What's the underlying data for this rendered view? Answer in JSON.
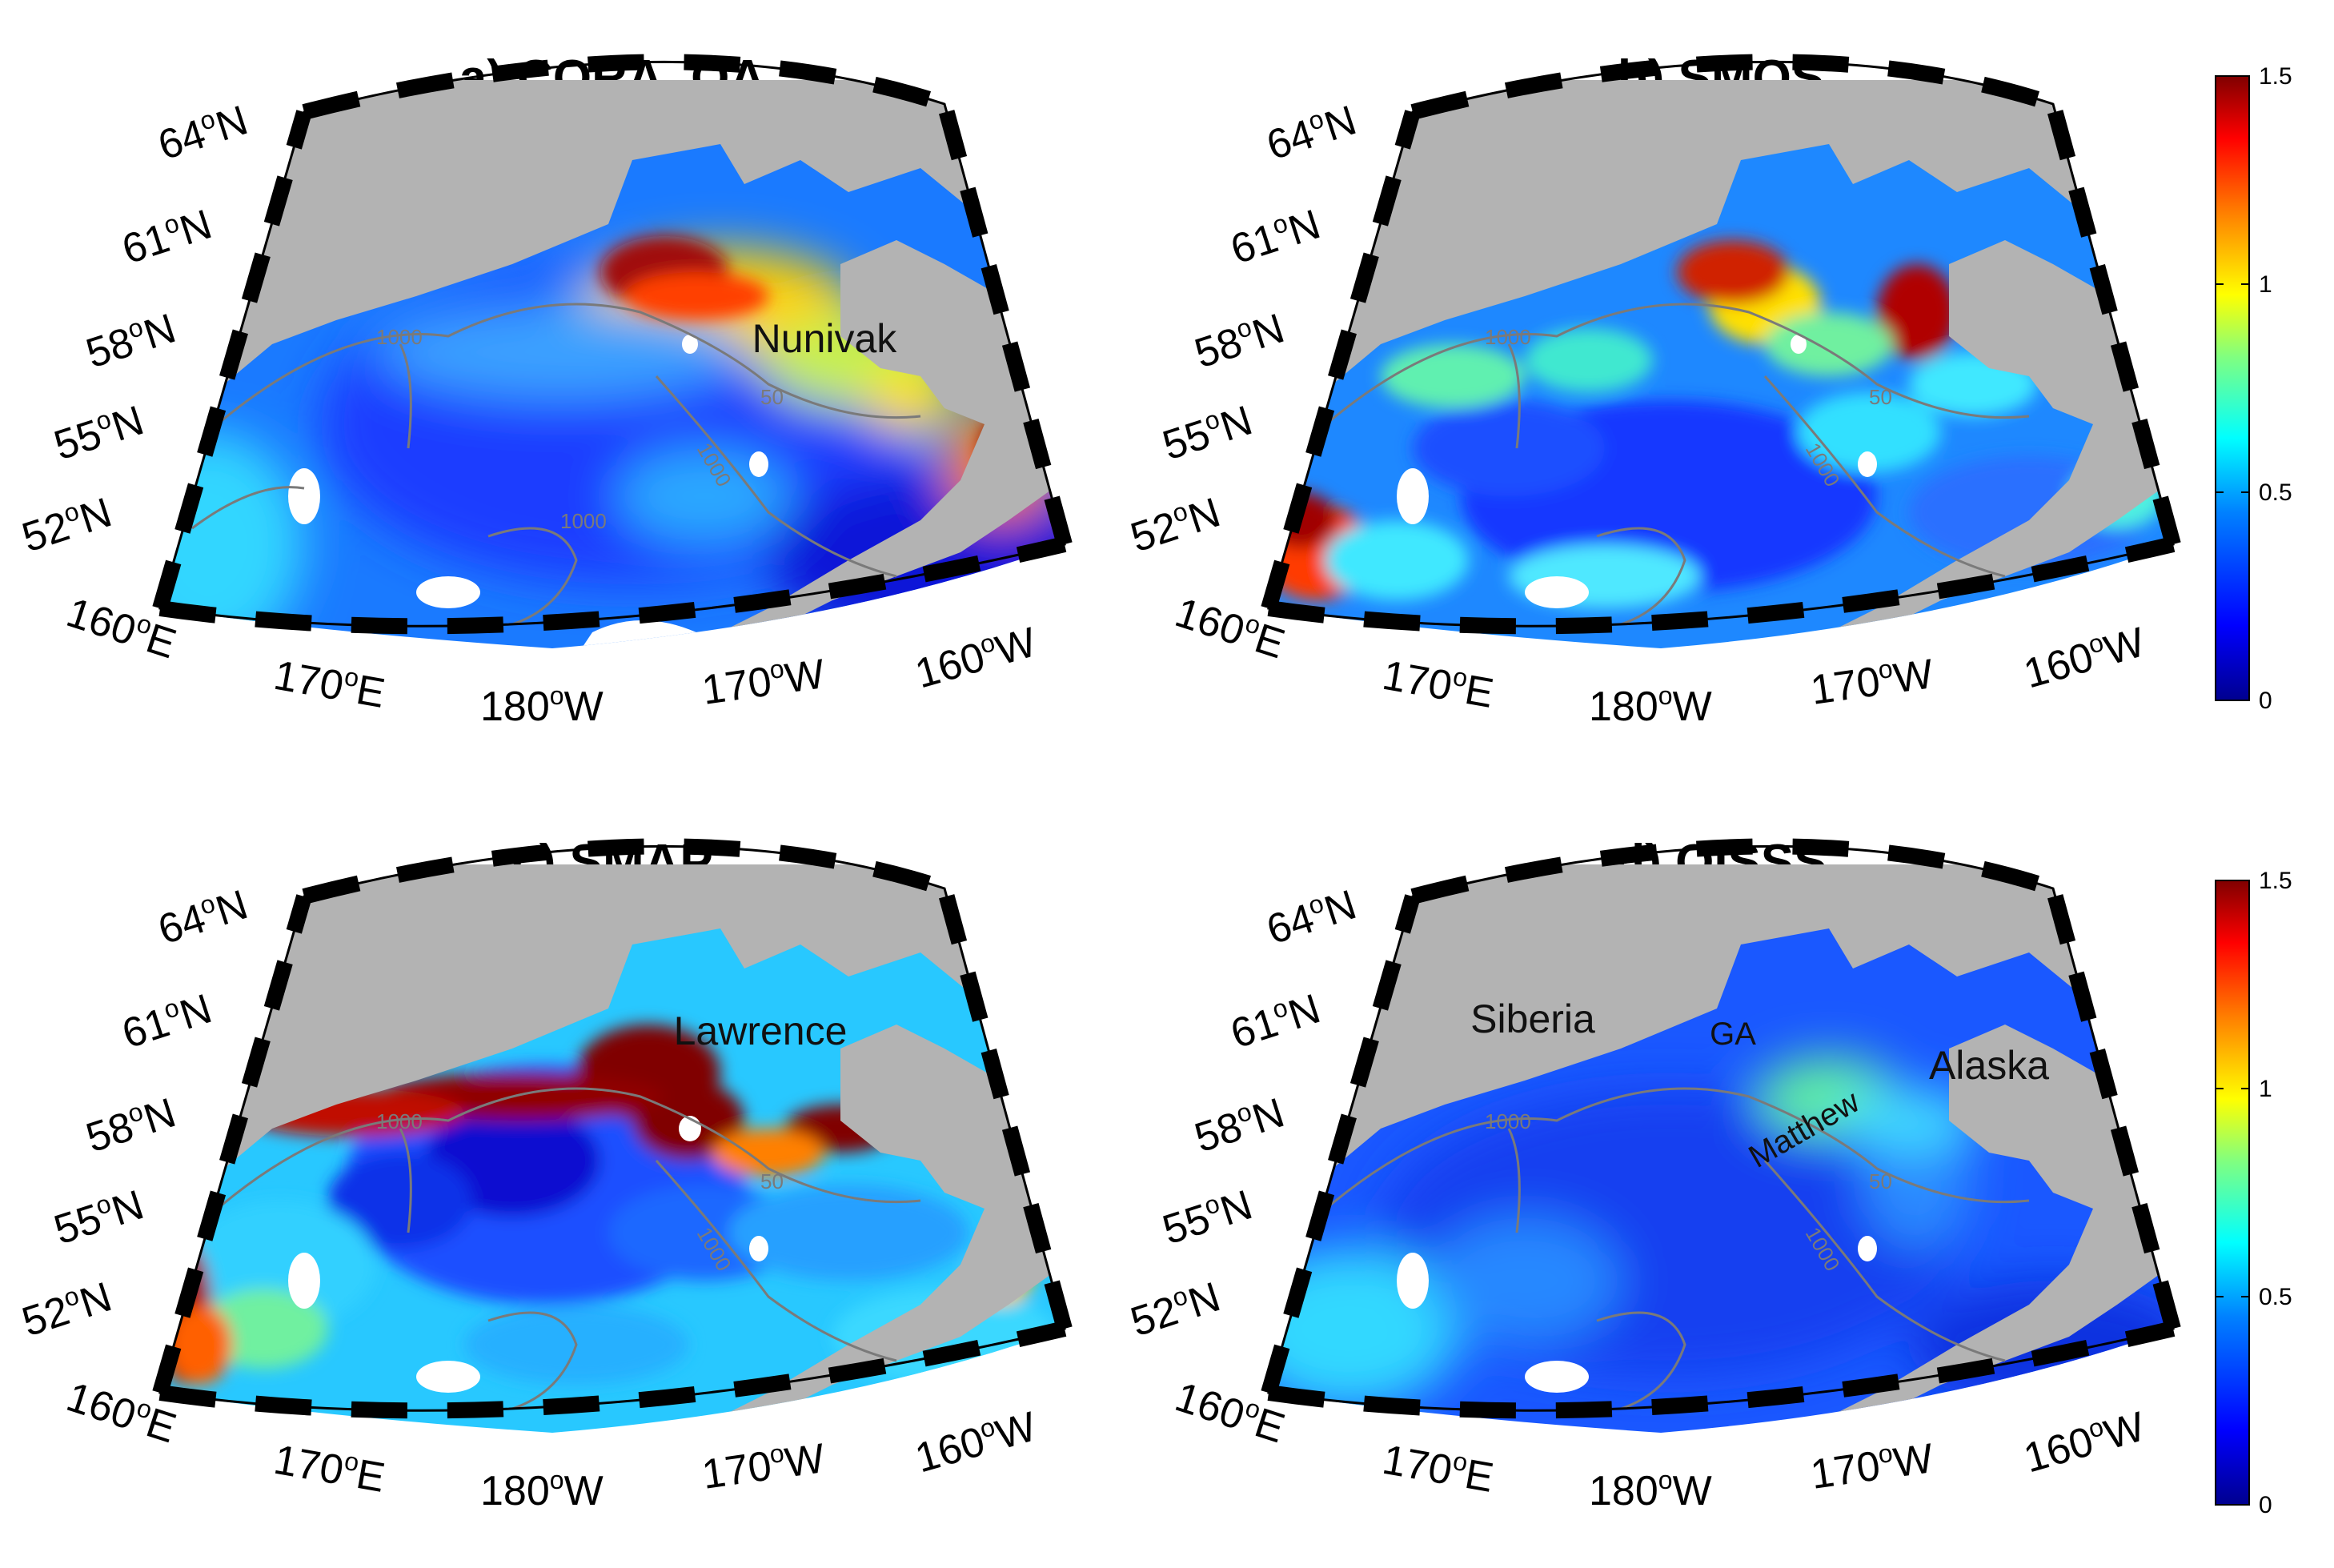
{
  "figure": {
    "panels": [
      {
        "id": "a",
        "title": "a) CORA_OA",
        "places": [
          {
            "name": "Nunivak"
          }
        ]
      },
      {
        "id": "b",
        "title": "b) SMOS",
        "places": []
      },
      {
        "id": "c",
        "title": "c) SMAP",
        "places": [
          {
            "name": "Lawrence"
          }
        ]
      },
      {
        "id": "d",
        "title": "d) OISSS",
        "places": [
          {
            "name": "Siberia"
          },
          {
            "name": "GA"
          },
          {
            "name": "Matthew"
          },
          {
            "name": "Alaska"
          }
        ]
      }
    ],
    "lat_labels": [
      {
        "deg": "64",
        "hemi": "N"
      },
      {
        "deg": "61",
        "hemi": "N"
      },
      {
        "deg": "58",
        "hemi": "N"
      },
      {
        "deg": "55",
        "hemi": "N"
      },
      {
        "deg": "52",
        "hemi": "N"
      }
    ],
    "lon_labels": [
      {
        "deg": "160",
        "hemi": "E"
      },
      {
        "deg": "170",
        "hemi": "E"
      },
      {
        "deg": "180",
        "hemi": "W"
      },
      {
        "deg": "170",
        "hemi": "W"
      },
      {
        "deg": "160",
        "hemi": "W"
      }
    ],
    "degree_symbol": "o",
    "contour_labels": [
      "50",
      "100",
      "1000"
    ],
    "colorbar": {
      "ticks": [
        "1.5",
        "1",
        "0.5",
        "0"
      ],
      "min": 0,
      "max": 1.5,
      "colormap": [
        "#00008f",
        "#0000ff",
        "#0080ff",
        "#00ffff",
        "#80ff80",
        "#ffff00",
        "#ff8000",
        "#ff0000",
        "#800000"
      ]
    },
    "colors": {
      "land": "#b3b3b3",
      "contour": "#7a7a7a",
      "frame": "#000000"
    }
  }
}
